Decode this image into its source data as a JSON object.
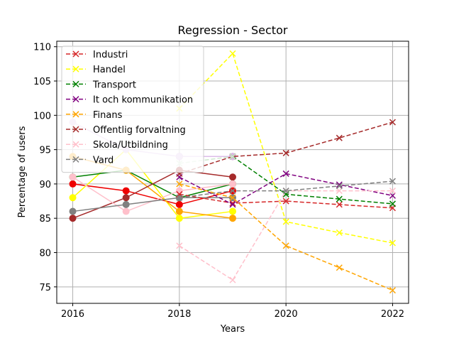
{
  "chart_data": {
    "type": "line",
    "title": "Regression - Sector",
    "xlabel": "Years",
    "ylabel": "Percentage of users",
    "xlim": [
      2015.7,
      2022.3
    ],
    "ylim": [
      72.6,
      110.8
    ],
    "xticks": [
      2016,
      2018,
      2020,
      2022
    ],
    "yticks": [
      75,
      80,
      85,
      90,
      95,
      100,
      105,
      110
    ],
    "grid": true,
    "legend_position": "top-left",
    "legend": [
      {
        "name": "Industri",
        "color": "#d62728"
      },
      {
        "name": "Handel",
        "color": "#ffff00"
      },
      {
        "name": "Transport",
        "color": "#008000"
      },
      {
        "name": "It och kommunikation",
        "color": "#800080"
      },
      {
        "name": "Finans",
        "color": "#ffa500"
      },
      {
        "name": "Offentlig forvaltning",
        "color": "#a52a2a"
      },
      {
        "name": "Skola/Utbildning",
        "color": "#ffc0cb"
      },
      {
        "name": "Vard",
        "color": "#808080"
      }
    ],
    "series": [
      {
        "color": "#ee0000",
        "style": "solid",
        "marker": "o",
        "points": [
          [
            2016,
            90
          ],
          [
            2017,
            89
          ],
          [
            2018,
            87
          ],
          [
            2019,
            89
          ]
        ]
      },
      {
        "color": "#ffff00",
        "style": "solid",
        "marker": "o",
        "points": [
          [
            2016,
            88
          ],
          [
            2017,
            95
          ],
          [
            2018,
            85
          ],
          [
            2019,
            86
          ]
        ]
      },
      {
        "color": "#008000",
        "style": "solid",
        "marker": "o",
        "points": [
          [
            2016,
            91
          ],
          [
            2017,
            92
          ],
          [
            2018,
            88
          ],
          [
            2019,
            90
          ]
        ]
      },
      {
        "color": "#800080",
        "style": "solid",
        "marker": "o",
        "points": [
          [
            2018,
            94
          ],
          [
            2019,
            94
          ]
        ]
      },
      {
        "color": "#ffa500",
        "style": "solid",
        "marker": "o",
        "points": [
          [
            2016,
            94
          ],
          [
            2017,
            92
          ],
          [
            2018,
            86
          ],
          [
            2019,
            85
          ]
        ]
      },
      {
        "color": "#a52a2a",
        "style": "solid",
        "marker": "o",
        "points": [
          [
            2016,
            85
          ],
          [
            2017,
            88
          ],
          [
            2018,
            92
          ],
          [
            2019,
            91
          ]
        ]
      },
      {
        "color": "#ffc0cb",
        "style": "solid",
        "marker": "o",
        "points": [
          [
            2016,
            91
          ],
          [
            2017,
            86
          ],
          [
            2018,
            89
          ],
          [
            2019,
            90
          ]
        ]
      },
      {
        "color": "#808080",
        "style": "solid",
        "marker": "o",
        "points": [
          [
            2016,
            86
          ],
          [
            2017,
            87
          ],
          [
            2018,
            88
          ],
          [
            2019,
            88
          ]
        ]
      },
      {
        "color": "#dcbce8",
        "style": "solid",
        "marker": "o",
        "points": [
          [
            2016,
            99
          ],
          [
            2017,
            95
          ],
          [
            2018,
            94
          ],
          [
            2019,
            94
          ]
        ]
      },
      {
        "color": "#d62728",
        "style": "dashed",
        "marker": "x",
        "points": [
          [
            2018,
            88.5
          ],
          [
            2019,
            87.2
          ],
          [
            2020,
            87.5
          ],
          [
            2021,
            87
          ],
          [
            2022,
            86.5
          ]
        ]
      },
      {
        "color": "#ffff00",
        "style": "dashed",
        "marker": "x",
        "points": [
          [
            2018,
            101
          ],
          [
            2019,
            109
          ],
          [
            2020,
            84.5
          ],
          [
            2021,
            82.9
          ],
          [
            2022,
            81.4
          ]
        ]
      },
      {
        "color": "#008000",
        "style": "dashed",
        "marker": "x",
        "points": [
          [
            2019,
            94
          ],
          [
            2020,
            88.5
          ],
          [
            2021,
            87.8
          ],
          [
            2022,
            87.1
          ]
        ]
      },
      {
        "color": "#800080",
        "style": "dashed",
        "marker": "x",
        "points": [
          [
            2018,
            91
          ],
          [
            2019,
            87
          ],
          [
            2020,
            91.5
          ],
          [
            2021,
            89.9
          ],
          [
            2022,
            88.3
          ]
        ]
      },
      {
        "color": "#ffa500",
        "style": "dashed",
        "marker": "x",
        "points": [
          [
            2018,
            90
          ],
          [
            2019,
            88
          ],
          [
            2020,
            81
          ],
          [
            2021,
            77.8
          ],
          [
            2022,
            74.5
          ]
        ]
      },
      {
        "color": "#a52a2a",
        "style": "dashed",
        "marker": "x",
        "points": [
          [
            2018,
            91.5
          ],
          [
            2019,
            94
          ],
          [
            2020,
            94.5
          ],
          [
            2021,
            96.7
          ],
          [
            2022,
            99
          ]
        ]
      },
      {
        "color": "#ffc0cb",
        "style": "dashed",
        "marker": "x",
        "points": [
          [
            2018,
            81
          ],
          [
            2019,
            76
          ],
          [
            2020,
            89
          ],
          [
            2021,
            89
          ],
          [
            2022,
            89
          ]
        ]
      },
      {
        "color": "#808080",
        "style": "dashed",
        "marker": "x",
        "points": [
          [
            2018,
            88
          ],
          [
            2019,
            89
          ],
          [
            2020,
            89
          ],
          [
            2021,
            89.7
          ],
          [
            2022,
            90.4
          ]
        ]
      },
      {
        "color": "#cce8cc",
        "style": "dashed",
        "marker": "x",
        "points": [
          [
            2018,
            93
          ],
          [
            2019,
            94
          ]
        ]
      }
    ]
  }
}
